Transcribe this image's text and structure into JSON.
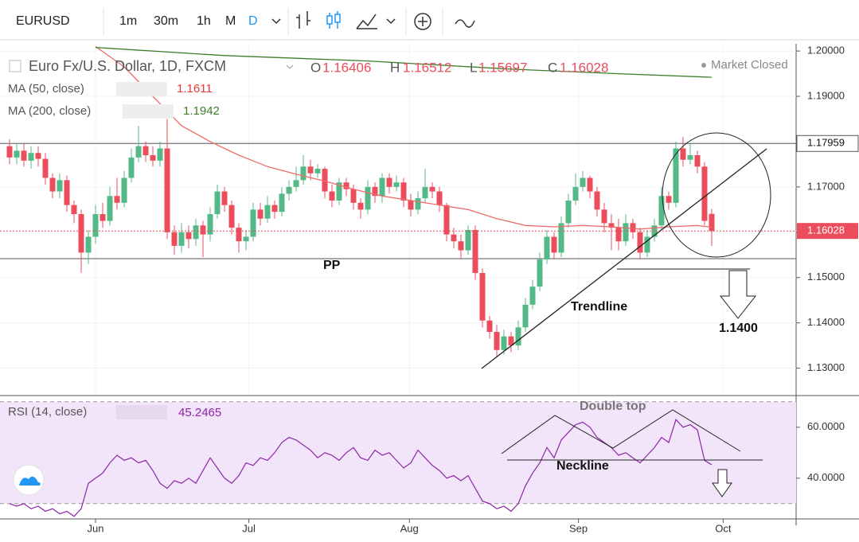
{
  "toolbar": {
    "symbol": "EURUSD",
    "intervals": [
      "1m",
      "30m",
      "1h",
      "M",
      "D"
    ]
  },
  "chart_data": {
    "type": "candlestick",
    "title": "Euro Fx/U.S. Dollar, 1D, FXCM",
    "ohlc_labels": [
      "O",
      "H",
      "L",
      "C"
    ],
    "status": "Market Closed",
    "up_color": "#53b987",
    "down_color": "#eb4d5c",
    "xlim": [
      -1.333,
      109.78
    ],
    "xticks": [
      {
        "value": 12,
        "label": "Jun"
      },
      {
        "value": 33.4,
        "label": "Jul"
      },
      {
        "value": 55.8,
        "label": "Aug"
      },
      {
        "value": 79.4,
        "label": "Sep"
      },
      {
        "value": 99.6,
        "label": "Oct"
      }
    ],
    "ylim": [
      1.1243,
      1.2016
    ],
    "yticks": [
      {
        "value": 1.13,
        "label": "1.13000"
      },
      {
        "value": 1.14,
        "label": "1.14000"
      },
      {
        "value": 1.15,
        "label": "1.15000"
      },
      {
        "value": 1.16,
        "label": "1.16000"
      },
      {
        "value": 1.17,
        "label": "1.17000"
      },
      {
        "value": 1.18,
        "label": "1.18000"
      },
      {
        "value": 1.19,
        "label": "1.19000"
      },
      {
        "value": 1.2,
        "label": "1.20000"
      }
    ],
    "grid": true,
    "candles": [
      [
        1.179,
        1.1805,
        1.175,
        1.1765
      ],
      [
        1.1765,
        1.1795,
        1.175,
        1.178
      ],
      [
        1.178,
        1.1795,
        1.1745,
        1.1758
      ],
      [
        1.1758,
        1.179,
        1.174,
        1.1775
      ],
      [
        1.1775,
        1.179,
        1.1745,
        1.1762
      ],
      [
        1.1762,
        1.1775,
        1.1705,
        1.172
      ],
      [
        1.172,
        1.173,
        1.1675,
        1.169
      ],
      [
        1.169,
        1.173,
        1.1675,
        1.1715
      ],
      [
        1.1715,
        1.1725,
        1.1645,
        1.166
      ],
      [
        1.166,
        1.167,
        1.162,
        1.164
      ],
      [
        1.164,
        1.165,
        1.151,
        1.1555
      ],
      [
        1.1555,
        1.1605,
        1.153,
        1.159
      ],
      [
        1.159,
        1.166,
        1.1575,
        1.164
      ],
      [
        1.164,
        1.1665,
        1.161,
        1.1625
      ],
      [
        1.1625,
        1.17,
        1.1615,
        1.168
      ],
      [
        1.168,
        1.172,
        1.165,
        1.1665
      ],
      [
        1.1665,
        1.1735,
        1.1655,
        1.172
      ],
      [
        1.172,
        1.1785,
        1.171,
        1.1765
      ],
      [
        1.1765,
        1.1835,
        1.1755,
        1.179
      ],
      [
        1.179,
        1.18,
        1.1755,
        1.177
      ],
      [
        1.177,
        1.179,
        1.1745,
        1.1758
      ],
      [
        1.1758,
        1.18,
        1.1745,
        1.1785
      ],
      [
        1.1785,
        1.185,
        1.1585,
        1.16
      ],
      [
        1.16,
        1.1615,
        1.155,
        1.157
      ],
      [
        1.157,
        1.162,
        1.1555,
        1.16
      ],
      [
        1.16,
        1.1615,
        1.1565,
        1.1585
      ],
      [
        1.1585,
        1.163,
        1.157,
        1.1615
      ],
      [
        1.1615,
        1.1625,
        1.1545,
        1.1595
      ],
      [
        1.1595,
        1.1655,
        1.158,
        1.164
      ],
      [
        1.164,
        1.1705,
        1.163,
        1.169
      ],
      [
        1.169,
        1.17,
        1.1645,
        1.166
      ],
      [
        1.166,
        1.167,
        1.1595,
        1.161
      ],
      [
        1.161,
        1.162,
        1.1555,
        1.158
      ],
      [
        1.158,
        1.1605,
        1.156,
        1.159
      ],
      [
        1.159,
        1.1665,
        1.158,
        1.165
      ],
      [
        1.165,
        1.1665,
        1.1615,
        1.163
      ],
      [
        1.163,
        1.168,
        1.162,
        1.166
      ],
      [
        1.166,
        1.167,
        1.163,
        1.1645
      ],
      [
        1.1645,
        1.17,
        1.1635,
        1.1685
      ],
      [
        1.1685,
        1.1715,
        1.167,
        1.17
      ],
      [
        1.17,
        1.1745,
        1.169,
        1.1715
      ],
      [
        1.1715,
        1.177,
        1.1705,
        1.1745
      ],
      [
        1.1745,
        1.176,
        1.1715,
        1.173
      ],
      [
        1.173,
        1.175,
        1.172,
        1.174
      ],
      [
        1.174,
        1.1745,
        1.1675,
        1.169
      ],
      [
        1.169,
        1.1705,
        1.1655,
        1.167
      ],
      [
        1.167,
        1.172,
        1.166,
        1.171
      ],
      [
        1.171,
        1.172,
        1.168,
        1.1695
      ],
      [
        1.1695,
        1.1705,
        1.165,
        1.1665
      ],
      [
        1.1665,
        1.1675,
        1.163,
        1.165
      ],
      [
        1.165,
        1.1715,
        1.164,
        1.17
      ],
      [
        1.17,
        1.171,
        1.1665,
        1.168
      ],
      [
        1.168,
        1.173,
        1.1665,
        1.172
      ],
      [
        1.172,
        1.173,
        1.1685,
        1.17
      ],
      [
        1.17,
        1.1725,
        1.169,
        1.171
      ],
      [
        1.171,
        1.172,
        1.1655,
        1.167
      ],
      [
        1.167,
        1.1685,
        1.1635,
        1.165
      ],
      [
        1.165,
        1.169,
        1.164,
        1.1675
      ],
      [
        1.1675,
        1.174,
        1.1665,
        1.17
      ],
      [
        1.17,
        1.171,
        1.1675,
        1.169
      ],
      [
        1.169,
        1.17,
        1.1645,
        1.166
      ],
      [
        1.166,
        1.1665,
        1.158,
        1.1595
      ],
      [
        1.1595,
        1.161,
        1.1565,
        1.158
      ],
      [
        1.158,
        1.1595,
        1.154,
        1.156
      ],
      [
        1.156,
        1.1615,
        1.155,
        1.1605
      ],
      [
        1.1605,
        1.1615,
        1.1495,
        1.151
      ],
      [
        1.151,
        1.152,
        1.139,
        1.1405
      ],
      [
        1.1405,
        1.1415,
        1.1365,
        1.138
      ],
      [
        1.138,
        1.1395,
        1.1325,
        1.134
      ],
      [
        1.134,
        1.1385,
        1.133,
        1.137
      ],
      [
        1.137,
        1.138,
        1.1335,
        1.135
      ],
      [
        1.135,
        1.1405,
        1.134,
        1.139
      ],
      [
        1.139,
        1.1455,
        1.138,
        1.144
      ],
      [
        1.144,
        1.1495,
        1.143,
        1.148
      ],
      [
        1.148,
        1.1555,
        1.147,
        1.154
      ],
      [
        1.154,
        1.1605,
        1.153,
        1.159
      ],
      [
        1.159,
        1.16,
        1.154,
        1.1555
      ],
      [
        1.1555,
        1.1635,
        1.1545,
        1.162
      ],
      [
        1.162,
        1.1685,
        1.161,
        1.167
      ],
      [
        1.167,
        1.173,
        1.166,
        1.17
      ],
      [
        1.17,
        1.1735,
        1.169,
        1.172
      ],
      [
        1.172,
        1.1725,
        1.1675,
        1.169
      ],
      [
        1.169,
        1.17,
        1.1635,
        1.165
      ],
      [
        1.165,
        1.1665,
        1.16,
        1.162
      ],
      [
        1.162,
        1.164,
        1.156,
        1.161
      ],
      [
        1.161,
        1.163,
        1.156,
        1.158
      ],
      [
        1.158,
        1.164,
        1.157,
        1.162
      ],
      [
        1.162,
        1.163,
        1.1585,
        1.16
      ],
      [
        1.16,
        1.161,
        1.154,
        1.1555
      ],
      [
        1.1555,
        1.1605,
        1.1545,
        1.159
      ],
      [
        1.159,
        1.163,
        1.158,
        1.1615
      ],
      [
        1.1615,
        1.17,
        1.1605,
        1.168
      ],
      [
        1.168,
        1.169,
        1.165,
        1.1665
      ],
      [
        1.1665,
        1.18,
        1.1655,
        1.1785
      ],
      [
        1.1785,
        1.181,
        1.1745,
        1.176
      ],
      [
        1.176,
        1.1795,
        1.175,
        1.177
      ],
      [
        1.177,
        1.178,
        1.173,
        1.1745
      ],
      [
        1.1745,
        1.1755,
        1.1615,
        1.1625
      ],
      [
        1.16406,
        1.16512,
        1.15697,
        1.16028
      ]
    ],
    "series": [
      {
        "name": "MA (50, close)",
        "color": "#ef6b6b",
        "x": [
          12,
          16,
          20,
          24,
          28,
          32,
          36,
          40,
          44,
          48,
          52,
          56,
          60,
          64,
          68,
          72,
          76,
          80,
          84,
          88,
          92,
          96,
          98
        ],
        "values": [
          1.201,
          1.1965,
          1.19,
          1.1835,
          1.18,
          1.177,
          1.1745,
          1.1728,
          1.1713,
          1.1695,
          1.168,
          1.167,
          1.166,
          1.165,
          1.163,
          1.1615,
          1.1612,
          1.1615,
          1.1612,
          1.1607,
          1.1612,
          1.1615,
          1.1611
        ]
      },
      {
        "name": "MA (200, close)",
        "color": "#3d7d2a",
        "x": [
          12,
          30,
          50,
          70,
          85,
          98
        ],
        "values": [
          1.2008,
          1.199,
          1.1978,
          1.196,
          1.195,
          1.1942
        ]
      }
    ],
    "levels": [
      {
        "value": 1.17959,
        "color": "#555555"
      }
    ],
    "annotations": [
      "PP",
      "Trendline",
      "1.1400",
      "Double top",
      "Neckline"
    ],
    "rsi": {
      "name": "RSI (14, close)",
      "color": "#8e24aa",
      "ylim": [
        24,
        71.5
      ],
      "yticks": [
        {
          "value": 40,
          "label": "40.0000"
        },
        {
          "value": 60,
          "label": "60.0000"
        }
      ],
      "bands": [
        30,
        70
      ],
      "values": [
        30,
        29,
        30,
        28,
        29,
        27,
        28,
        26,
        27,
        25,
        28,
        38,
        40,
        42,
        46,
        49,
        47,
        48,
        46,
        47,
        43,
        38,
        36,
        39,
        38,
        40,
        38,
        43,
        48,
        44,
        40,
        38,
        41,
        46,
        45,
        48,
        47,
        50,
        54,
        56,
        55,
        53,
        51,
        48,
        50,
        49,
        47,
        50,
        52,
        48,
        47,
        51,
        49,
        50,
        47,
        44,
        46,
        51,
        48,
        45,
        43,
        40,
        41,
        39,
        41,
        36,
        31,
        30,
        28,
        29,
        27,
        30,
        37,
        42,
        46,
        52,
        48,
        55,
        58,
        61,
        62,
        60,
        56,
        54,
        52,
        49,
        50,
        48,
        46,
        49,
        52,
        56,
        54,
        63,
        60,
        61,
        59,
        47,
        45.2465
      ]
    }
  }
}
